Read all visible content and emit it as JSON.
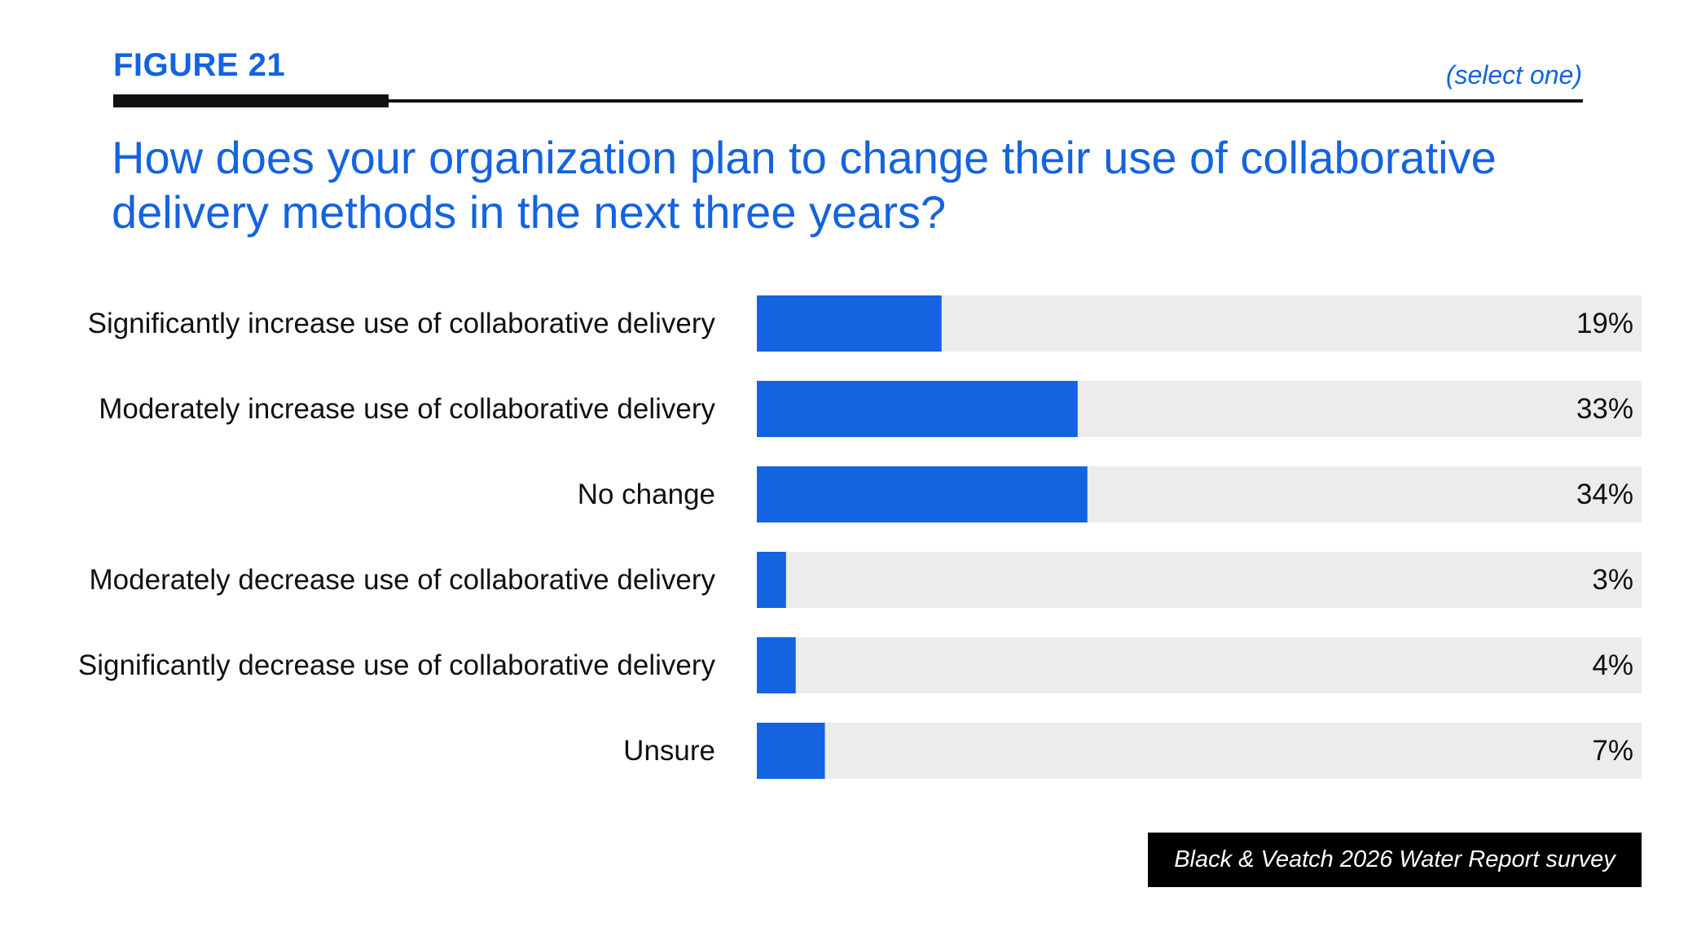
{
  "figure_label": "FIGURE 21",
  "select_hint": "(select one)",
  "question": "How does your organization plan to change their use of collaborative delivery methods in the next three years?",
  "source": "Black & Veatch 2026 Water Report survey",
  "colors": {
    "accent": "#1463e0",
    "track": "#ececec",
    "text": "#111111"
  },
  "chart_data": {
    "type": "bar",
    "orientation": "horizontal",
    "categories": [
      "Significantly increase use of collaborative delivery",
      "Moderately increase use of collaborative delivery",
      "No change",
      "Moderately decrease use of collaborative delivery",
      "Significantly decrease use of collaborative delivery",
      "Unsure"
    ],
    "values": [
      19,
      33,
      34,
      3,
      4,
      7
    ],
    "value_labels": [
      "19%",
      "33%",
      "34%",
      "3%",
      "4%",
      "7%"
    ],
    "xlim": [
      0,
      91
    ],
    "grid": false
  }
}
